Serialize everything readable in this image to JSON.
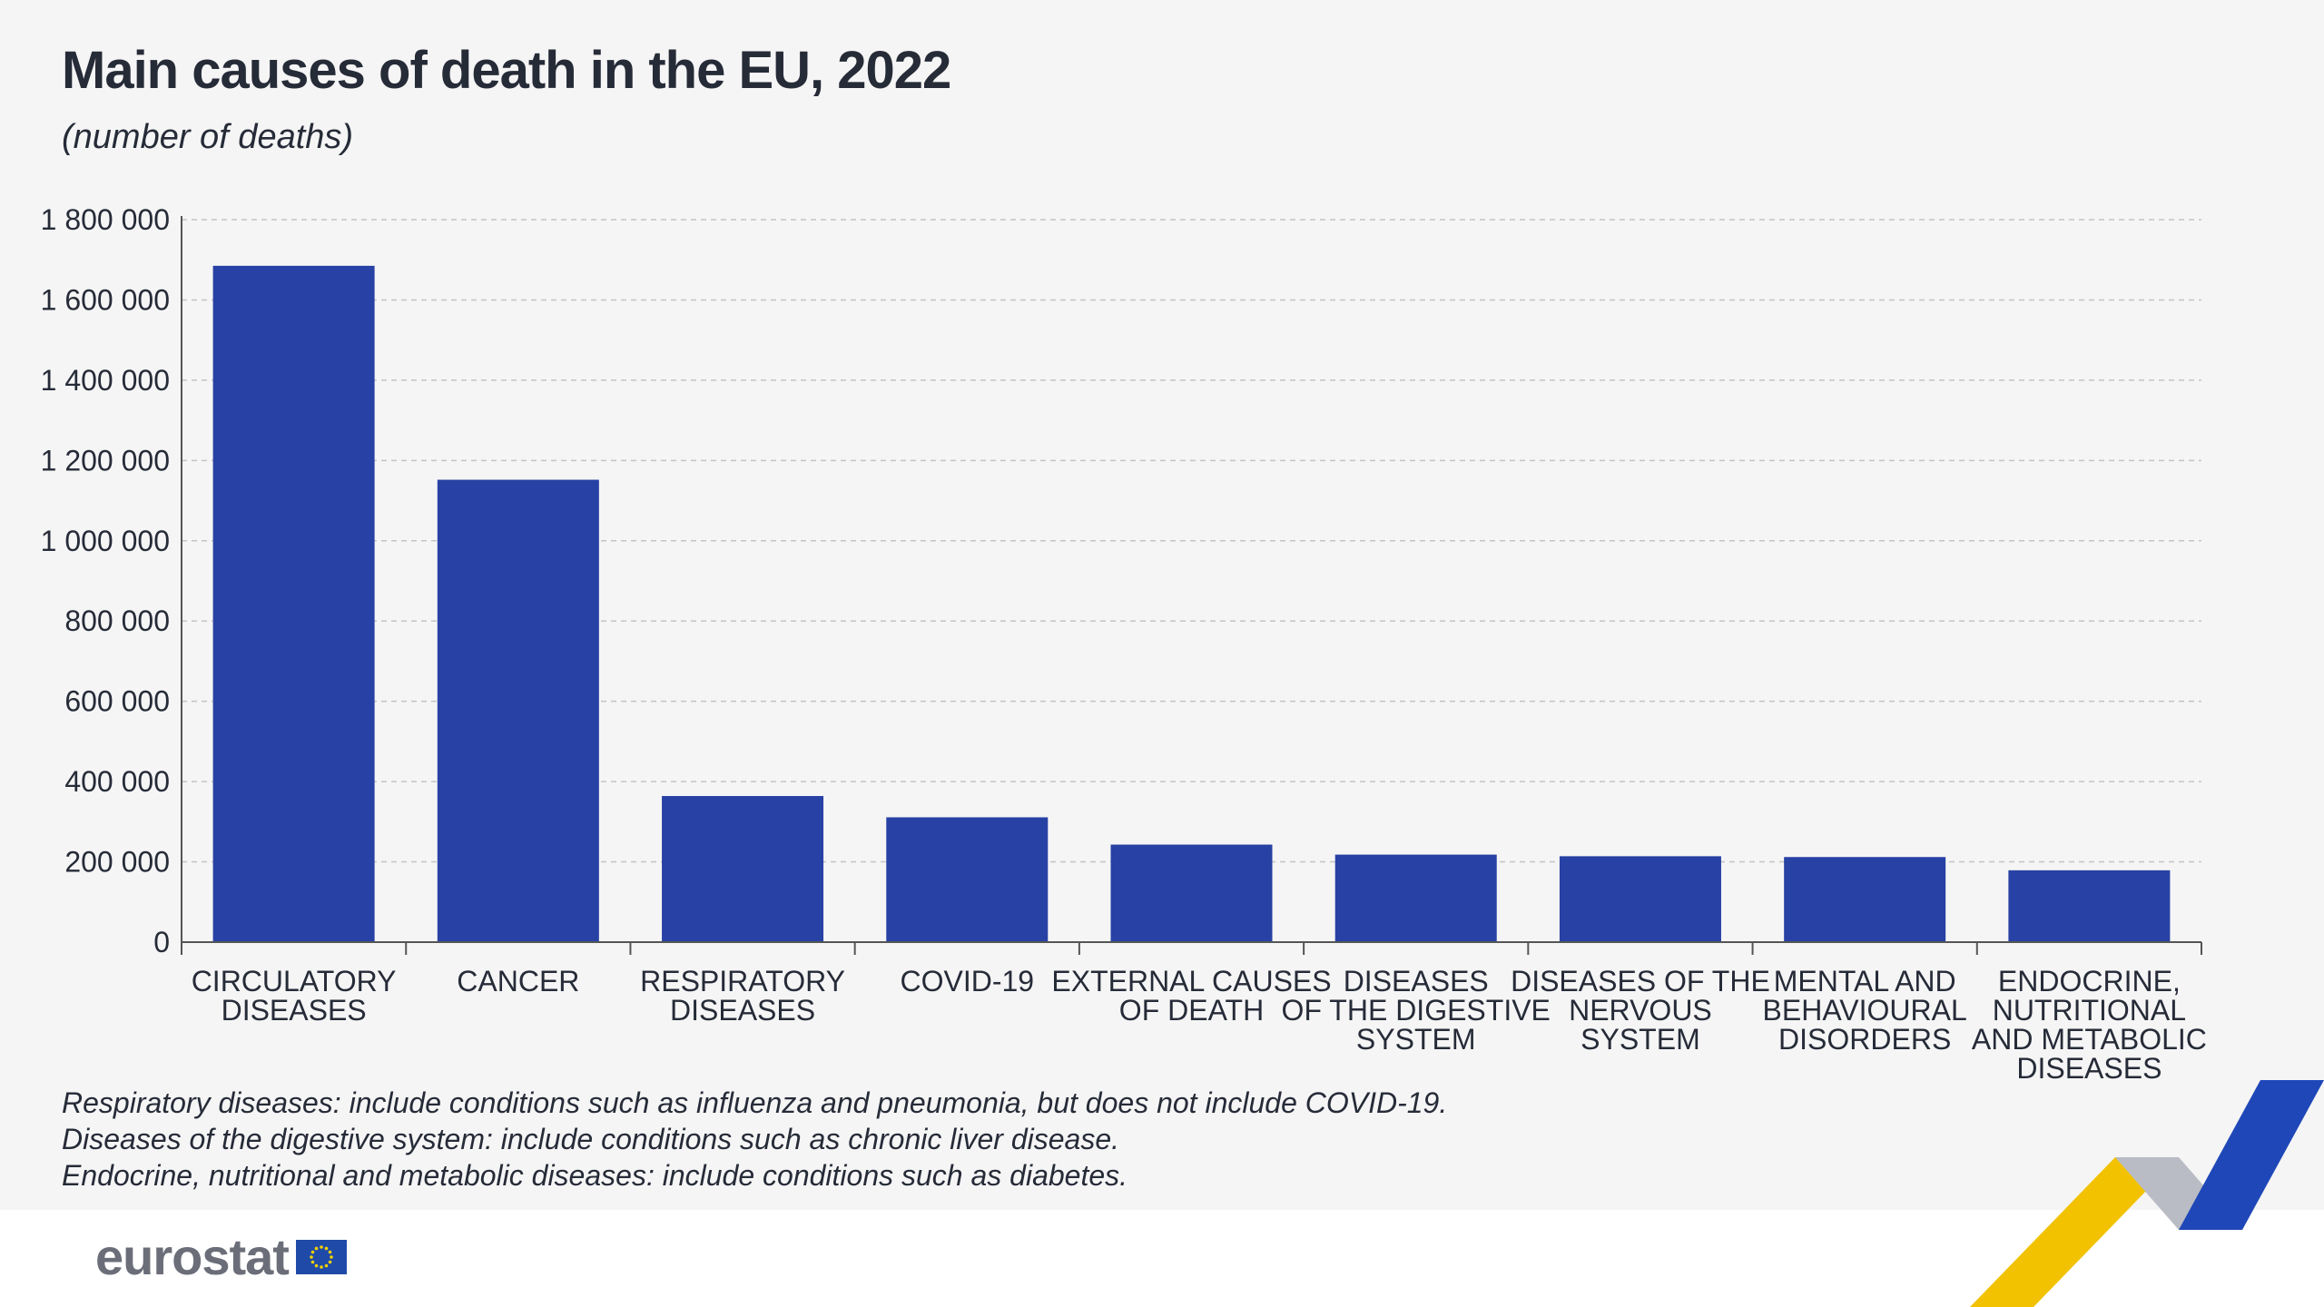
{
  "header": {
    "title": "Main causes of death in the EU, 2022",
    "subtitle": "(number of deaths)"
  },
  "chart_data": {
    "type": "bar",
    "title": "Main causes of death in the EU, 2022",
    "subtitle": "(number of deaths)",
    "xlabel": "",
    "ylabel": "",
    "ylim": [
      0,
      1800000
    ],
    "yticks": [
      0,
      200000,
      400000,
      600000,
      800000,
      1000000,
      1200000,
      1400000,
      1600000,
      1800000
    ],
    "ytick_labels": [
      "0",
      "200 000",
      "400 000",
      "600 000",
      "800 000",
      "1 000 000",
      "1 200 000",
      "1 400 000",
      "1 600 000",
      "1 800 000"
    ],
    "grid": true,
    "legend": "none",
    "bar_color": "#2741a4",
    "categories": [
      [
        "CIRCULATORY",
        "DISEASES"
      ],
      [
        "CANCER"
      ],
      [
        "RESPIRATORY",
        "DISEASES"
      ],
      [
        "COVID-19"
      ],
      [
        "EXTERNAL CAUSES",
        "OF DEATH"
      ],
      [
        "DISEASES",
        "OF THE DIGESTIVE",
        "SYSTEM"
      ],
      [
        "DISEASES OF THE",
        "NERVOUS",
        "SYSTEM"
      ],
      [
        "MENTAL AND",
        "BEHAVIOURAL",
        "DISORDERS"
      ],
      [
        "ENDOCRINE,",
        "NUTRITIONAL",
        "AND METABOLIC",
        "DISEASES"
      ]
    ],
    "values": [
      1685000,
      1152000,
      364000,
      311000,
      243000,
      218000,
      214000,
      212000,
      179000
    ]
  },
  "notes": [
    "Respiratory diseases: include conditions such as influenza and pneumonia, but does not include COVID-19.",
    "Diseases of the digestive system: include conditions such as chronic liver disease.",
    "Endocrine, nutritional and metabolic diseases: include conditions such as diabetes."
  ],
  "footer": {
    "logo_text": "eurostat",
    "flag_color": "#1f4aa8",
    "star_color": "#f3d200"
  }
}
